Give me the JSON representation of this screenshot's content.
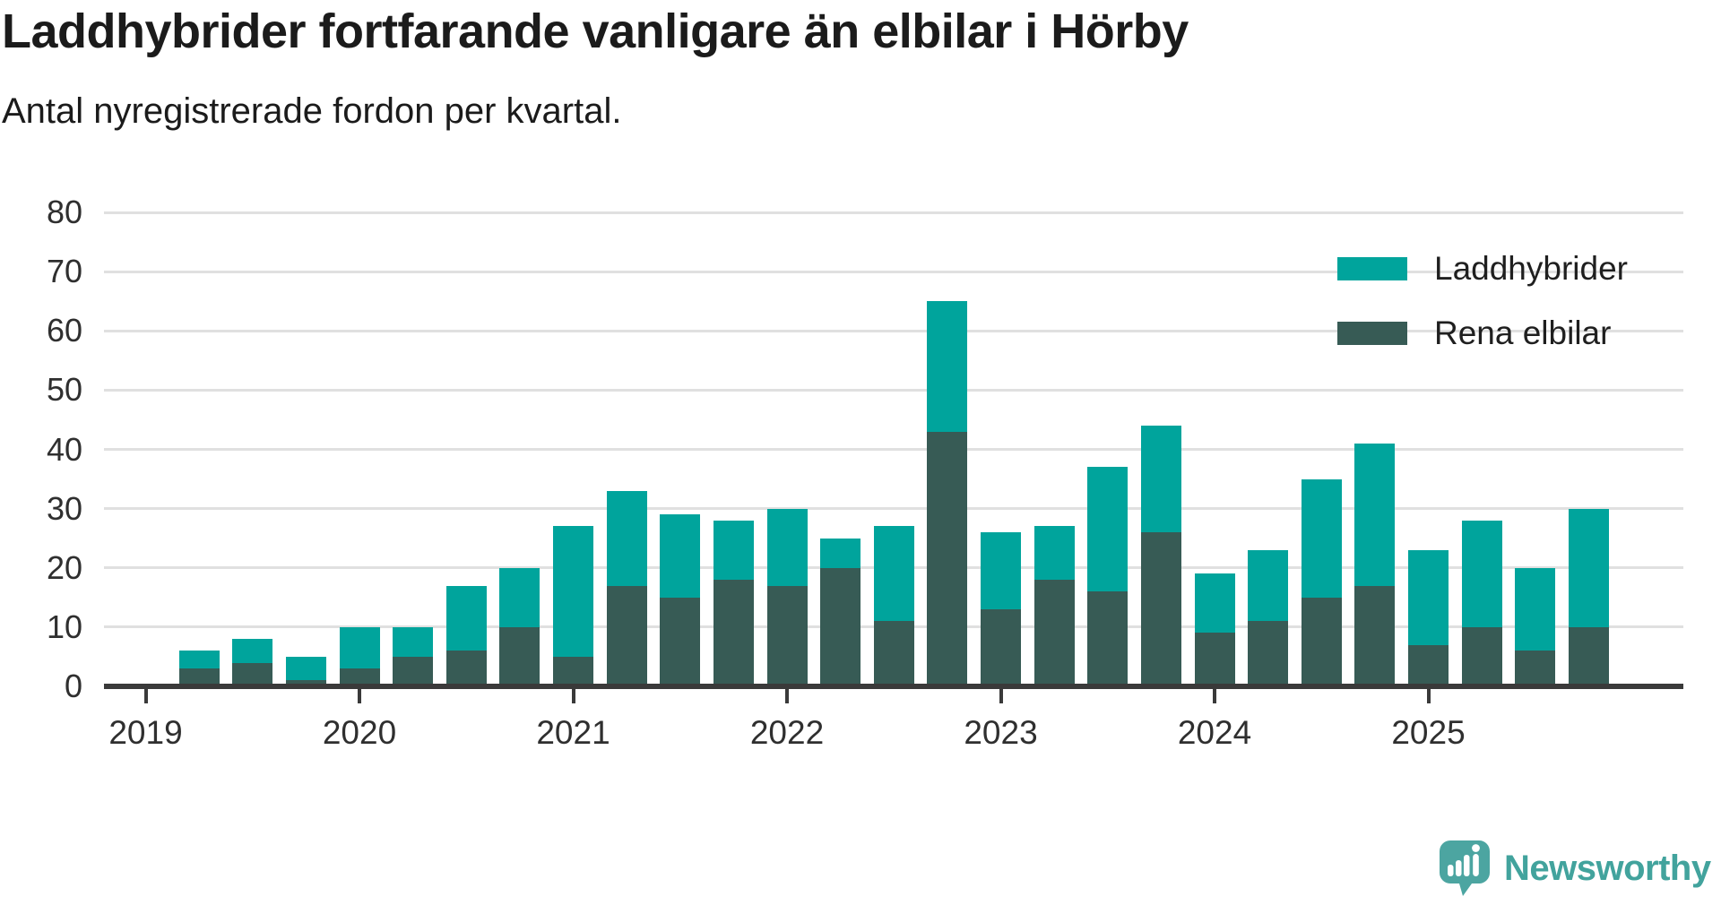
{
  "header": {
    "title": "Laddhybrider fortfarande vanligare än elbilar i Hörby",
    "subtitle": "Antal nyregistrerade fordon per kvartal."
  },
  "legend": {
    "items": [
      {
        "label": "Laddhybrider",
        "color": "#00a49c"
      },
      {
        "label": "Rena elbilar",
        "color": "#375b55"
      }
    ]
  },
  "footer": {
    "brand": "Newsworthy",
    "logo_icon": "speech-bubble-with-bar-chart-and-exclamation",
    "logo_color": "#4ca5a1"
  },
  "colors": {
    "laddhybrider": "#00a49c",
    "rena_elbilar": "#375b55",
    "gridline": "#e0e0e0",
    "axis": "#3a3a3a",
    "text": "#2f2f2f"
  },
  "chart_data": {
    "type": "bar",
    "stacked": true,
    "title": "Laddhybrider fortfarande vanligare än elbilar i Hörby",
    "subtitle": "Antal nyregistrerade fordon per kvartal.",
    "xlabel": "",
    "ylabel": "",
    "ylim": [
      0,
      80
    ],
    "yticks": [
      0,
      10,
      20,
      30,
      40,
      50,
      60,
      70,
      80
    ],
    "xticks": [
      2019,
      2020,
      2021,
      2022,
      2023,
      2024,
      2025
    ],
    "grid": "horizontal",
    "legend_position": "top-right",
    "categories": [
      "2019Q2",
      "2019Q3",
      "2019Q4",
      "2020Q1",
      "2020Q2",
      "2020Q3",
      "2020Q4",
      "2021Q1",
      "2021Q2",
      "2021Q3",
      "2021Q4",
      "2022Q1",
      "2022Q2",
      "2022Q3",
      "2022Q4",
      "2023Q1",
      "2023Q2",
      "2023Q3",
      "2023Q4",
      "2024Q1",
      "2024Q2",
      "2024Q3",
      "2024Q4",
      "2025Q1",
      "2025Q2",
      "2025Q3",
      "2025Q4"
    ],
    "series": [
      {
        "name": "Laddhybrider",
        "color": "#00a49c",
        "values": [
          3,
          4,
          4,
          7,
          5,
          11,
          10,
          22,
          16,
          14,
          10,
          13,
          5,
          16,
          22,
          13,
          9,
          21,
          18,
          10,
          12,
          20,
          24,
          16,
          18,
          14,
          20
        ]
      },
      {
        "name": "Rena elbilar",
        "color": "#375b55",
        "values": [
          3,
          4,
          1,
          3,
          5,
          6,
          10,
          5,
          17,
          15,
          18,
          17,
          20,
          11,
          43,
          13,
          18,
          16,
          26,
          9,
          11,
          15,
          17,
          7,
          10,
          6,
          10
        ]
      }
    ],
    "totals": [
      6,
      8,
      5,
      10,
      10,
      17,
      20,
      27,
      33,
      29,
      28,
      30,
      25,
      27,
      65,
      26,
      27,
      37,
      44,
      19,
      23,
      35,
      41,
      23,
      28,
      20,
      30
    ]
  }
}
